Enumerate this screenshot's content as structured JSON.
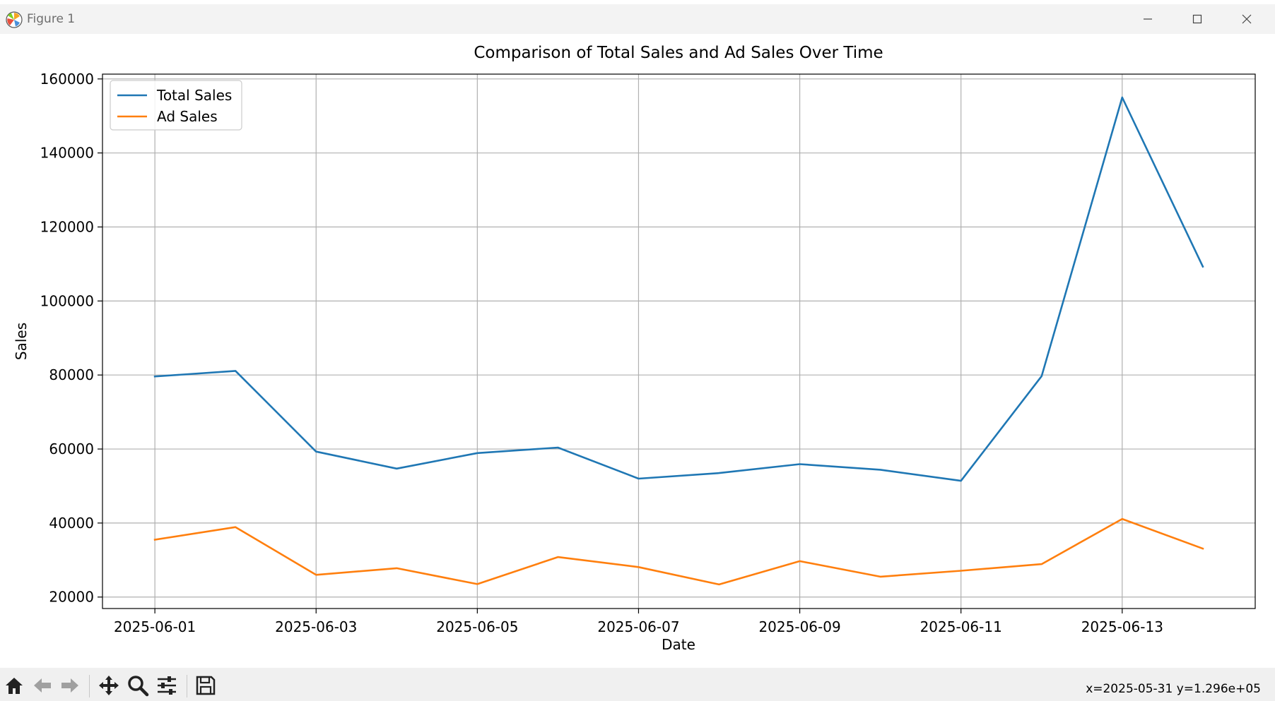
{
  "window": {
    "title": "Figure 1"
  },
  "toolbar": {
    "buttons": [
      "home-icon",
      "back-icon",
      "forward-icon",
      "pan-icon",
      "zoom-icon",
      "configure-icon",
      "save-icon"
    ],
    "coords": "x=2025-05-31 y=1.296e+05"
  },
  "colors": {
    "total": "#1f77b4",
    "ad": "#ff7f0e"
  },
  "chart_data": {
    "type": "line",
    "title": "Comparison of Total Sales and Ad Sales Over Time",
    "xlabel": "Date",
    "ylabel": "Sales",
    "x": [
      "2025-06-01",
      "2025-06-02",
      "2025-06-03",
      "2025-06-04",
      "2025-06-05",
      "2025-06-06",
      "2025-06-07",
      "2025-06-08",
      "2025-06-09",
      "2025-06-10",
      "2025-06-11",
      "2025-06-12",
      "2025-06-13",
      "2025-06-14"
    ],
    "xticks": [
      "2025-06-01",
      "2025-06-03",
      "2025-06-05",
      "2025-06-07",
      "2025-06-09",
      "2025-06-11",
      "2025-06-13"
    ],
    "xlim": [
      "2025-05-31T08:24",
      "2025-06-14T15:36"
    ],
    "ylim": [
      16900,
      161300
    ],
    "yticks": [
      20000,
      40000,
      60000,
      80000,
      100000,
      120000,
      140000,
      160000
    ],
    "grid": true,
    "legend": "upper-left",
    "series": [
      {
        "name": "Total Sales",
        "values": [
          79600,
          81100,
          59300,
          54700,
          58900,
          60400,
          52000,
          53500,
          55900,
          54400,
          51400,
          79700,
          155000,
          109300
        ]
      },
      {
        "name": "Ad Sales",
        "values": [
          35500,
          38900,
          26000,
          27800,
          23500,
          30800,
          28100,
          23400,
          29700,
          25500,
          27100,
          28900,
          41100,
          33100
        ]
      }
    ]
  }
}
